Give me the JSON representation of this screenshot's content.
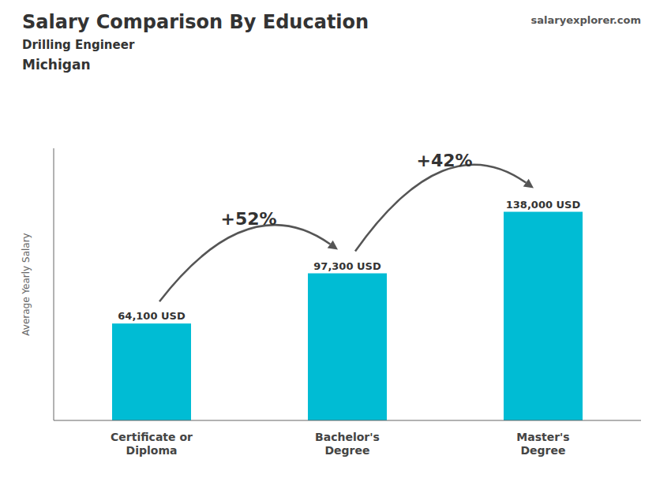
{
  "chart_data": {
    "type": "bar",
    "title": "Salary Comparison By Education",
    "subtitle": [
      "Drilling Engineer",
      "Michigan"
    ],
    "ylabel": "Average Yearly Salary",
    "categories": [
      "Certificate or\nDiploma",
      "Bachelor's\nDegree",
      "Master's\nDegree"
    ],
    "values": [
      64100,
      97300,
      138000
    ],
    "value_labels": [
      "64,100 USD",
      "97,300 USD",
      "138,000 USD"
    ],
    "data_labels": true,
    "color": "#00bcd4",
    "ylim": [
      0,
      180000
    ],
    "grid": false,
    "tick_labels": "x",
    "annotations": [
      {
        "text": "+52%",
        "from": 0,
        "to": 1
      },
      {
        "text": "+42%",
        "from": 1,
        "to": 2
      },
      {
        "text": "salaryexplorer.com"
      }
    ]
  }
}
